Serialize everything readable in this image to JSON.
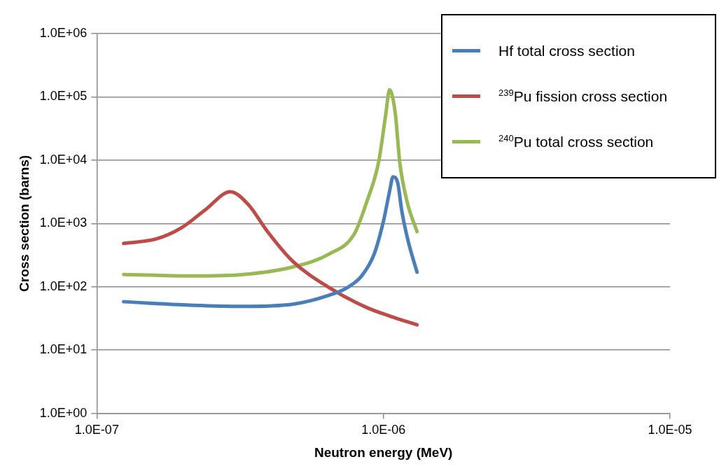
{
  "chart_data": {
    "type": "line",
    "xlabel": "Neutron energy (MeV)",
    "ylabel": "Cross section (barns)",
    "log": "xy",
    "grid": "y",
    "legend": "top right",
    "marker": "none",
    "line_style": "solid",
    "xlim": [
      1e-07,
      1e-05
    ],
    "xticks": [
      {
        "value": 1e-07,
        "label": "1.0E-07"
      },
      {
        "value": 1e-06,
        "label": "1.0E-06"
      },
      {
        "value": 1e-05,
        "label": "1.0E-05"
      }
    ],
    "ylim": [
      1,
      1000000
    ],
    "yticks": [
      {
        "value": 1,
        "label": "1.0E+00"
      },
      {
        "value": 10,
        "label": "1.0E+01"
      },
      {
        "value": 100,
        "label": "1.0E+02"
      },
      {
        "value": 1000,
        "label": "1.0E+03"
      },
      {
        "value": 10000,
        "label": "1.0E+04"
      },
      {
        "value": 100000,
        "label": "1.0E+05"
      },
      {
        "value": 1000000,
        "label": "1.0E+06"
      }
    ],
    "series": [
      {
        "name": "Hf total cross section",
        "color": "#4a7ebb",
        "x": [
          1.24e-07,
          2.17e-07,
          3.24e-07,
          4.82e-07,
          6.49e-07,
          7.45e-07,
          8.39e-07,
          9.29e-07,
          1e-06,
          1.05e-06,
          1.08e-06,
          1.12e-06,
          1.16e-06,
          1.22e-06,
          1.31e-06
        ],
        "values": [
          58,
          51,
          49,
          53,
          74,
          96,
          148,
          332,
          1083,
          3175,
          5440,
          4500,
          1537,
          525,
          170
        ]
      },
      {
        "name": "$^{239}$Pu fission cross section",
        "color": "#be4b48",
        "x": [
          1.24e-07,
          1.61e-07,
          1.97e-07,
          2.4e-07,
          2.92e-07,
          3.37e-07,
          3.94e-07,
          4.82e-07,
          6.49e-07,
          8.74e-07,
          1.06e-06,
          1.31e-06
        ],
        "values": [
          484,
          569,
          851,
          1667,
          3175,
          2010,
          744,
          254,
          96,
          47,
          34,
          25
        ]
      },
      {
        "name": "$^{240}$Pu total cross section",
        "color": "#98b954",
        "x": [
          1.24e-07,
          2.17e-07,
          3.24e-07,
          4.82e-07,
          6.49e-07,
          7.92e-07,
          8.74e-07,
          9.62e-07,
          1.02e-06,
          1.05e-06,
          1.1e-06,
          1.14e-06,
          1.21e-06,
          1.31e-06
        ],
        "values": [
          156,
          148,
          156,
          205,
          332,
          686,
          2180,
          9300,
          54800,
          130000,
          54800,
          9300,
          2180,
          744
        ]
      }
    ]
  }
}
